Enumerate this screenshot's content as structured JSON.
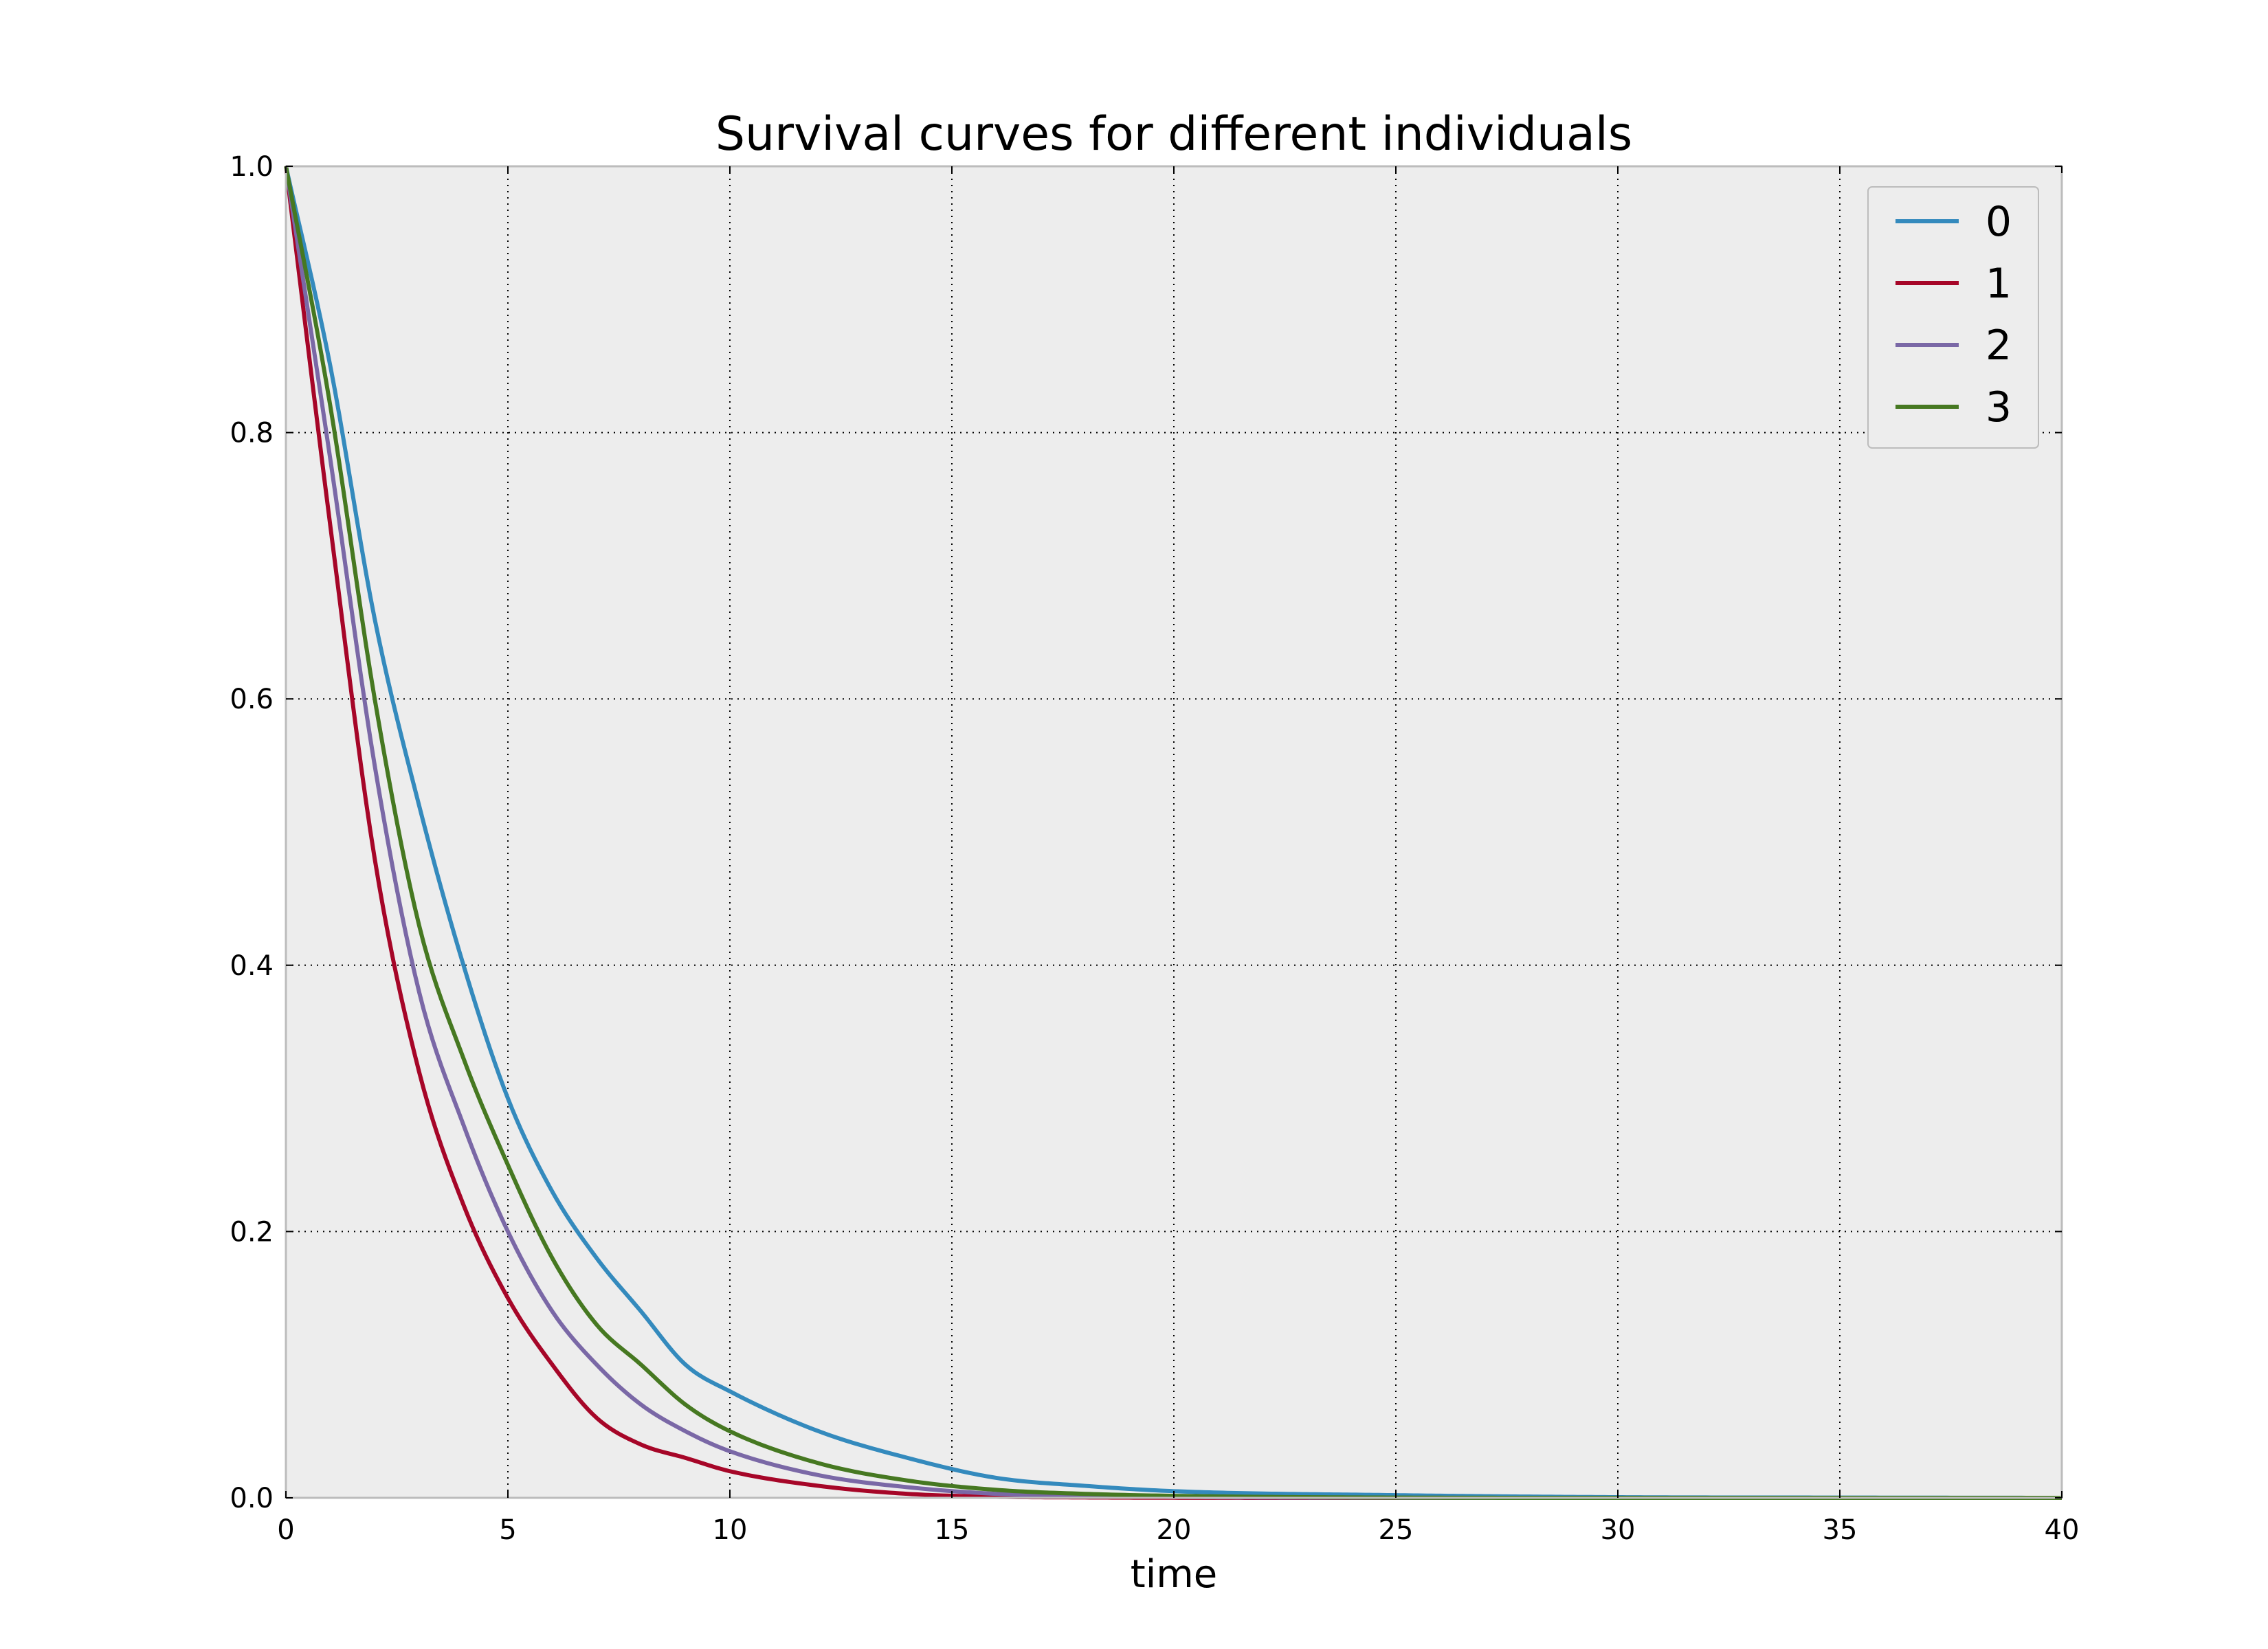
{
  "chart_data": {
    "type": "line",
    "title": "Survival curves for different individuals",
    "xlabel": "time",
    "ylabel": "",
    "xlim": [
      0,
      40
    ],
    "ylim": [
      0.0,
      1.0
    ],
    "x_ticks": [
      "0",
      "5",
      "10",
      "15",
      "20",
      "25",
      "30",
      "35",
      "40"
    ],
    "y_ticks": [
      "0.0",
      "0.2",
      "0.4",
      "0.6",
      "0.8",
      "1.0"
    ],
    "grid": true,
    "background": "#ededed",
    "legend_position": "top-right",
    "x": [
      0,
      1,
      2,
      3,
      4,
      5,
      6,
      7,
      8,
      9,
      10,
      12,
      14,
      16,
      18,
      20,
      25,
      30,
      35,
      40
    ],
    "series": [
      {
        "name": "0",
        "color": "#348abd",
        "values": [
          1.0,
          0.85,
          0.66,
          0.52,
          0.4,
          0.3,
          0.23,
          0.18,
          0.14,
          0.1,
          0.08,
          0.05,
          0.03,
          0.015,
          0.009,
          0.005,
          0.002,
          0.0005,
          0.0002,
          0.0
        ]
      },
      {
        "name": "1",
        "color": "#a60628",
        "values": [
          1.0,
          0.73,
          0.48,
          0.32,
          0.22,
          0.15,
          0.1,
          0.06,
          0.04,
          0.03,
          0.02,
          0.009,
          0.003,
          0.0008,
          0.0003,
          0.0001,
          0.0,
          0.0,
          0.0,
          0.0
        ]
      },
      {
        "name": "2",
        "color": "#7a68a6",
        "values": [
          1.0,
          0.78,
          0.55,
          0.38,
          0.28,
          0.2,
          0.14,
          0.1,
          0.07,
          0.05,
          0.035,
          0.017,
          0.008,
          0.003,
          0.0015,
          0.0007,
          0.0001,
          0.0,
          0.0,
          0.0
        ]
      },
      {
        "name": "3",
        "color": "#467821",
        "values": [
          1.0,
          0.82,
          0.6,
          0.43,
          0.33,
          0.25,
          0.18,
          0.13,
          0.1,
          0.07,
          0.05,
          0.026,
          0.013,
          0.006,
          0.003,
          0.0015,
          0.0002,
          0.0,
          0.0,
          0.0
        ]
      }
    ]
  }
}
